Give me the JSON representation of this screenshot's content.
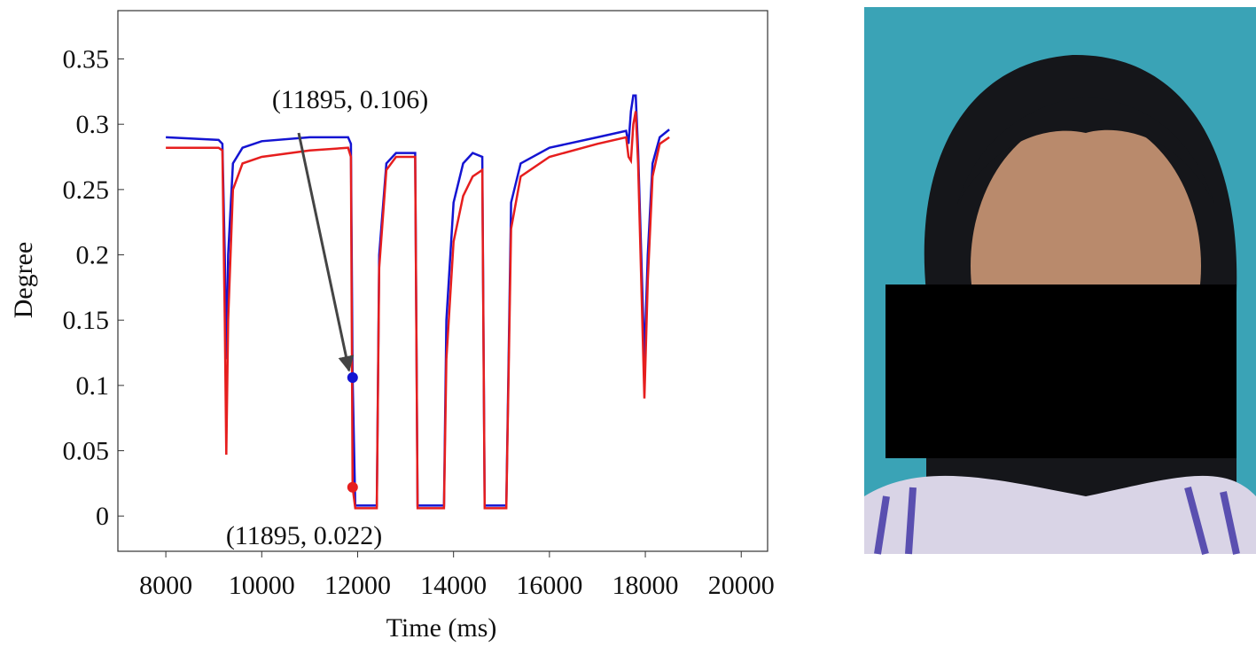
{
  "chart_data": {
    "type": "line",
    "x_label": "Time (ms)",
    "y_label": "Degree",
    "x": [
      8000,
      9100,
      9180,
      9230,
      9260,
      9300,
      9400,
      9600,
      10000,
      11000,
      11800,
      11860,
      11895,
      11950,
      12400,
      12450,
      12600,
      12800,
      13200,
      13250,
      13800,
      13850,
      14000,
      14200,
      14400,
      14600,
      14650,
      15100,
      15200,
      15400,
      16000,
      17000,
      17600,
      17650,
      17700,
      17750,
      17800,
      17850,
      17980,
      18050,
      18150,
      18300,
      18500
    ],
    "series": [
      {
        "color": "#1414d2",
        "values": [
          0.29,
          0.288,
          0.285,
          0.2,
          0.12,
          0.2,
          0.27,
          0.282,
          0.287,
          0.29,
          0.29,
          0.285,
          0.106,
          0.008,
          0.008,
          0.2,
          0.27,
          0.278,
          0.278,
          0.008,
          0.008,
          0.15,
          0.24,
          0.27,
          0.278,
          0.275,
          0.008,
          0.008,
          0.24,
          0.27,
          0.282,
          0.29,
          0.295,
          0.285,
          0.31,
          0.322,
          0.322,
          0.28,
          0.12,
          0.2,
          0.27,
          0.29,
          0.296
        ]
      },
      {
        "color": "#e61e1e",
        "values": [
          0.282,
          0.282,
          0.28,
          0.15,
          0.047,
          0.15,
          0.25,
          0.27,
          0.275,
          0.28,
          0.282,
          0.275,
          0.022,
          0.006,
          0.006,
          0.19,
          0.265,
          0.275,
          0.275,
          0.006,
          0.006,
          0.12,
          0.21,
          0.245,
          0.26,
          0.265,
          0.006,
          0.006,
          0.22,
          0.26,
          0.275,
          0.285,
          0.29,
          0.275,
          0.272,
          0.3,
          0.31,
          0.27,
          0.09,
          0.18,
          0.26,
          0.285,
          0.29
        ]
      }
    ],
    "annotations": [
      {
        "text": "(11895, 0.106)",
        "x": 11895,
        "y": 0.106,
        "color": "#1414d2"
      },
      {
        "text": "(11895, 0.022)",
        "x": 11895,
        "y": 0.022,
        "color": "#e61e1e"
      }
    ],
    "xlim": [
      7000,
      20550
    ],
    "ylim": [
      -0.027,
      0.387
    ],
    "xticks": [
      8000,
      10000,
      12000,
      14000,
      16000,
      18000,
      20000
    ],
    "yticks": [
      0,
      0.05,
      0.1,
      0.15,
      0.2,
      0.25,
      0.3,
      0.35
    ]
  }
}
